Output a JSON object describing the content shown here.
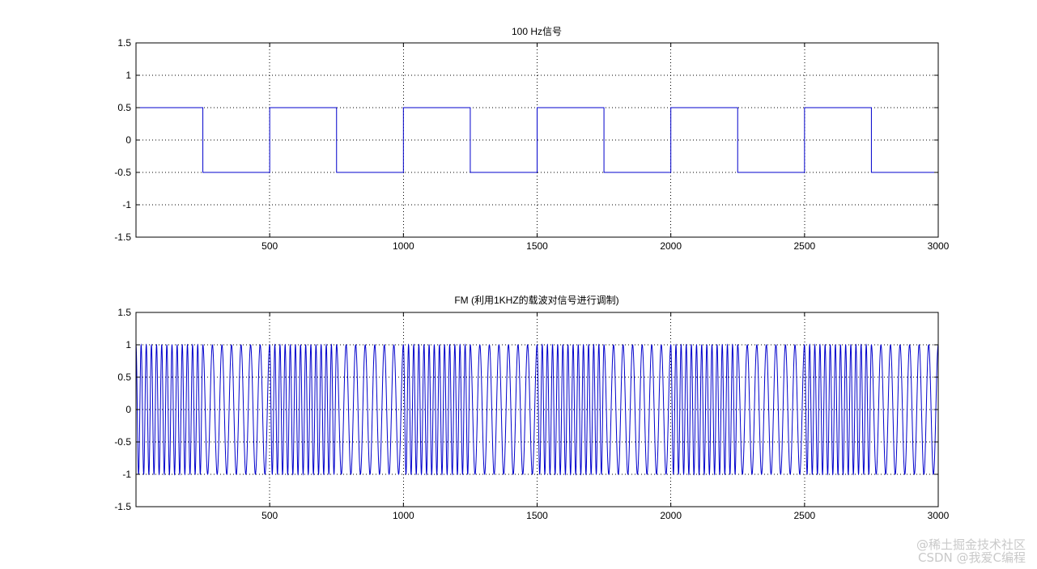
{
  "chart_data": [
    {
      "type": "line",
      "title": "100 Hz信号",
      "xlabel": "",
      "ylabel": "",
      "xlim": [
        0,
        3000
      ],
      "ylim": [
        -1.5,
        1.5
      ],
      "xticks": [
        500,
        1000,
        1500,
        2000,
        2500,
        3000
      ],
      "xtick_labels": [
        "500",
        "1000",
        "1500",
        "2000",
        "2500",
        "3000"
      ],
      "yticks": [
        1.5,
        1,
        0.5,
        0,
        -0.5,
        -1,
        -1.5
      ],
      "ytick_labels": [
        "1.5",
        "1",
        "0.5",
        "0",
        "-0.5",
        "-1",
        "-1.5"
      ],
      "grid": true,
      "line_color": "#0000cc",
      "series": [
        {
          "x": [
            0,
            250,
            250,
            500,
            500,
            750,
            750,
            1000,
            1000,
            1250,
            1250,
            1500,
            1500,
            1750,
            1750,
            2000,
            2000,
            2250,
            2250,
            2500,
            2500,
            2750,
            2750,
            3000
          ],
          "values": [
            0.5,
            0.5,
            -0.5,
            -0.5,
            0.5,
            0.5,
            -0.5,
            -0.5,
            0.5,
            0.5,
            -0.5,
            -0.5,
            0.5,
            0.5,
            -0.5,
            -0.5,
            0.5,
            0.5,
            -0.5,
            -0.5,
            0.5,
            0.5,
            -0.5,
            -0.5
          ]
        }
      ]
    },
    {
      "type": "line",
      "title": "FM (利用1KHZ的载波对信号进行调制)",
      "xlabel": "",
      "ylabel": "",
      "xlim": [
        0,
        3000
      ],
      "ylim": [
        -1.5,
        1.5
      ],
      "xticks": [
        500,
        1000,
        1500,
        2000,
        2500,
        3000
      ],
      "xtick_labels": [
        "500",
        "1000",
        "1500",
        "2000",
        "2500",
        "3000"
      ],
      "yticks": [
        1.5,
        1,
        0.5,
        0,
        -0.5,
        -1,
        -1.5
      ],
      "ytick_labels": [
        "1.5",
        "1",
        "0.5",
        "0",
        "-0.5",
        "-1",
        "-1.5"
      ],
      "grid": true,
      "line_color": "#0000cc",
      "series": [
        {
          "amplitude": 1,
          "cycles_per_250_samples_high": 13,
          "cycles_per_250_samples_low": 7,
          "modulating_period_samples": 500
        }
      ]
    }
  ],
  "watermark": {
    "line1": "@稀土掘金技术社区",
    "line2": "CSDN @我爱C编程"
  }
}
